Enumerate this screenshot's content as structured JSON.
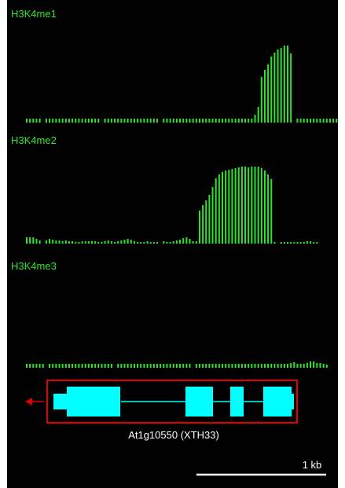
{
  "tracks": [
    {
      "label": "H3K4me1",
      "profile": [
        0.05,
        0.05,
        0.05,
        0.05,
        0.05,
        0,
        0.05,
        0.05,
        0.05,
        0.05,
        0.05,
        0.05,
        0.05,
        0.05,
        0.05,
        0.05,
        0.05,
        0.05,
        0.05,
        0.05,
        0.05,
        0.05,
        0.05,
        0,
        0.05,
        0.05,
        0.05,
        0.05,
        0.05,
        0.05,
        0.05,
        0.05,
        0.05,
        0.05,
        0.05,
        0.05,
        0.05,
        0.05,
        0.05,
        0.05,
        0.05,
        0,
        0.05,
        0.05,
        0.05,
        0.05,
        0.05,
        0.05,
        0.05,
        0.05,
        0.05,
        0.05,
        0.05,
        0.05,
        0.05,
        0.05,
        0.05,
        0.05,
        0.05,
        0.05,
        0.05,
        0.05,
        0.05,
        0.05,
        0.05,
        0.05,
        0.05,
        0.05,
        0.05,
        0.05,
        0.1,
        0.2,
        0.58,
        0.67,
        0.74,
        0.84,
        0.89,
        0.93,
        0.95,
        0.98,
        0.98,
        0.88,
        0,
        0.05,
        0.05,
        0.05,
        0.05,
        0.05,
        0.05,
        0.05,
        0.05,
        0.05,
        0.05,
        0.05,
        0.05,
        0.05
      ]
    },
    {
      "label": "H3K4me2",
      "profile": [
        0.08,
        0.08,
        0.08,
        0.06,
        0.04,
        0,
        0.04,
        0.06,
        0.05,
        0.04,
        0.04,
        0.03,
        0.04,
        0.03,
        0.03,
        0.02,
        0.02,
        0.03,
        0.03,
        0.03,
        0.03,
        0.03,
        0.02,
        0.02,
        0.03,
        0.04,
        0.03,
        0.02,
        0.03,
        0.04,
        0.05,
        0.06,
        0.05,
        0.03,
        0.02,
        0.02,
        0.02,
        0.03,
        0.02,
        0.02,
        0.02,
        0,
        0.03,
        0.02,
        0.02,
        0.03,
        0.04,
        0.05,
        0.07,
        0.08,
        0.06,
        0.03,
        0.03,
        0.42,
        0.49,
        0.55,
        0.62,
        0.72,
        0.83,
        0.88,
        0.91,
        0.93,
        0.94,
        0.95,
        0.96,
        0.97,
        0.98,
        0.98,
        0.97,
        0.98,
        0.98,
        0.98,
        0.96,
        0.93,
        0.88,
        0.82,
        0.02,
        0,
        0.02,
        0.02,
        0.02,
        0.02,
        0.02,
        0.02,
        0.02,
        0.02,
        0.03,
        0.03,
        0.02,
        0.02
      ]
    },
    {
      "label": "H3K4me3",
      "profile": [
        0.05,
        0.05,
        0.05,
        0.05,
        0.05,
        0.05,
        0,
        0.05,
        0.05,
        0.05,
        0.05,
        0.05,
        0.05,
        0.05,
        0.05,
        0.05,
        0.05,
        0.05,
        0.05,
        0.05,
        0.05,
        0.05,
        0.05,
        0.05,
        0.05,
        0.05,
        0.05,
        0,
        0.05,
        0.05,
        0.05,
        0.05,
        0.05,
        0.05,
        0.05,
        0.05,
        0.05,
        0.05,
        0.05,
        0.05,
        0.05,
        0.05,
        0.05,
        0.05,
        0.05,
        0.05,
        0.05,
        0.05,
        0.05,
        0.05,
        0.05,
        0,
        0.05,
        0.05,
        0.05,
        0.05,
        0.05,
        0.05,
        0.05,
        0.05,
        0.05,
        0.05,
        0.05,
        0.05,
        0.05,
        0.05,
        0.05,
        0.05,
        0.05,
        0.05,
        0.05,
        0.05,
        0.05,
        0.05,
        0.05,
        0.05,
        0.05,
        0.05,
        0.05,
        0.05,
        0.05,
        0.06,
        0.07,
        0.05,
        0.05,
        0.05,
        0.06,
        0.08,
        0.08,
        0.06,
        0.06,
        0.05,
        0.04
      ]
    }
  ],
  "gene": {
    "name": "At1g10550 (XTH33)",
    "strand": "-"
  },
  "scale_bar": {
    "label": "1 kb"
  },
  "colors": {
    "background": "#000000",
    "signal": "#2ee52e",
    "label": "#2ee52e",
    "gene": "#00ffff",
    "box": "#e00000",
    "arrow": "#e00000",
    "text": "#ffffff"
  }
}
